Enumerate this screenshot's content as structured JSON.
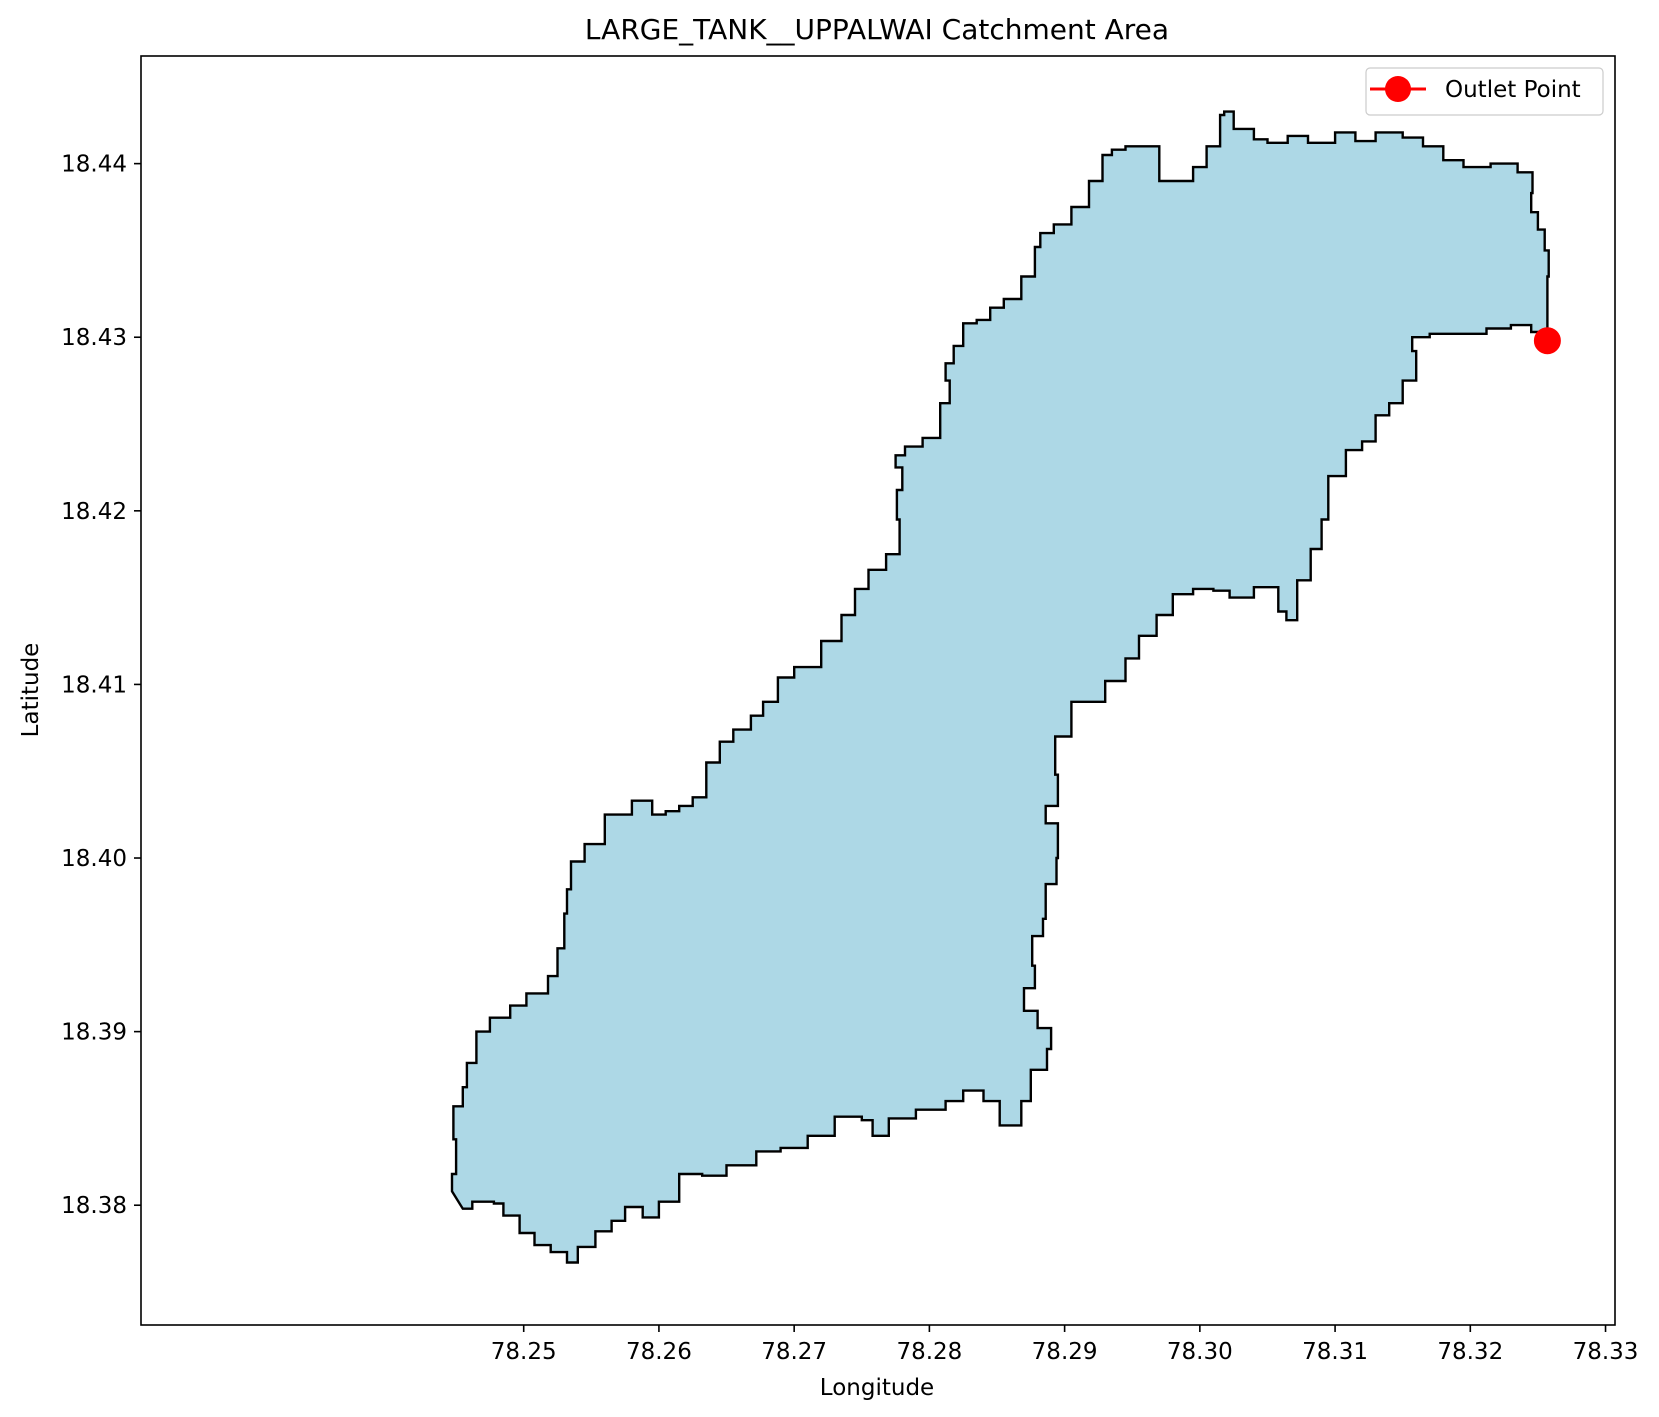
{
  "chart_data": {
    "type": "map",
    "title": "LARGE_TANK__UPPALWAI Catchment Area",
    "xlabel": "Longitude",
    "ylabel": "Latitude",
    "xlim": [
      78.2217,
      78.3307
    ],
    "ylim": [
      18.3731,
      18.4462
    ],
    "xticks": [
      78.25,
      78.26,
      78.27,
      78.28,
      78.29,
      78.3,
      78.31,
      78.32,
      78.33
    ],
    "xtick_labels": [
      "78.25",
      "78.26",
      "78.27",
      "78.28",
      "78.29",
      "78.30",
      "78.31",
      "78.32",
      "78.33"
    ],
    "yticks": [
      18.38,
      18.39,
      18.4,
      18.41,
      18.42,
      18.43,
      18.44
    ],
    "ytick_labels": [
      "18.38",
      "18.39",
      "18.40",
      "18.41",
      "18.42",
      "18.43",
      "18.44"
    ],
    "grid": false,
    "legend": {
      "placement": "top-right",
      "entries": [
        {
          "label": "Outlet Point",
          "color": "#ff0000",
          "marker": "circle-with-line"
        }
      ]
    },
    "catchment": {
      "fill_color": "#add8e6",
      "edge_color": "#000000",
      "boundary": [
        [
          78.2455,
          18.3798
        ],
        [
          78.2462,
          18.3802
        ],
        [
          78.2478,
          18.3801
        ],
        [
          78.2485,
          18.3794
        ],
        [
          78.2497,
          18.3784
        ],
        [
          78.2508,
          18.3777
        ],
        [
          78.252,
          18.3773
        ],
        [
          78.2532,
          18.3767
        ],
        [
          78.254,
          18.3776
        ],
        [
          78.2553,
          18.3785
        ],
        [
          78.2565,
          18.3791
        ],
        [
          78.2575,
          18.3799
        ],
        [
          78.2588,
          18.3793
        ],
        [
          78.26,
          18.3802
        ],
        [
          78.2615,
          18.3818
        ],
        [
          78.2632,
          18.3817
        ],
        [
          78.265,
          18.3823
        ],
        [
          78.2672,
          18.3831
        ],
        [
          78.269,
          18.3833
        ],
        [
          78.271,
          18.384
        ],
        [
          78.273,
          18.3851
        ],
        [
          78.275,
          18.3849
        ],
        [
          78.2758,
          18.384
        ],
        [
          78.277,
          18.385
        ],
        [
          78.279,
          18.3855
        ],
        [
          78.2812,
          18.386
        ],
        [
          78.2825,
          18.3866
        ],
        [
          78.284,
          18.386
        ],
        [
          78.2852,
          18.3846
        ],
        [
          78.2868,
          18.386
        ],
        [
          78.2875,
          18.3878
        ],
        [
          78.2887,
          18.389
        ],
        [
          78.289,
          18.3902
        ],
        [
          78.288,
          18.3912
        ],
        [
          78.287,
          18.3925
        ],
        [
          78.2878,
          18.3938
        ],
        [
          78.2876,
          18.3955
        ],
        [
          78.2884,
          18.3965
        ],
        [
          78.2886,
          18.3985
        ],
        [
          78.2894,
          18.4
        ],
        [
          78.2895,
          18.402
        ],
        [
          78.2886,
          18.403
        ],
        [
          78.2895,
          18.4048
        ],
        [
          78.2893,
          18.407
        ],
        [
          78.2905,
          18.409
        ],
        [
          78.293,
          18.4102
        ],
        [
          78.2945,
          18.4115
        ],
        [
          78.2955,
          18.4128
        ],
        [
          78.2968,
          18.414
        ],
        [
          78.298,
          18.4152
        ],
        [
          78.2995,
          18.4155
        ],
        [
          78.301,
          18.4154
        ],
        [
          78.3022,
          18.415
        ],
        [
          78.304,
          18.4156
        ],
        [
          78.3058,
          18.4142
        ],
        [
          78.3064,
          18.4137
        ],
        [
          78.3072,
          18.416
        ],
        [
          78.3082,
          18.4178
        ],
        [
          78.309,
          18.4195
        ],
        [
          78.3095,
          18.422
        ],
        [
          78.3108,
          18.4235
        ],
        [
          78.312,
          18.424
        ],
        [
          78.313,
          18.4255
        ],
        [
          78.314,
          18.4262
        ],
        [
          78.315,
          18.4275
        ],
        [
          78.316,
          18.4292
        ],
        [
          78.3157,
          18.43
        ],
        [
          78.317,
          18.4302
        ],
        [
          78.319,
          18.4302
        ],
        [
          78.3212,
          18.4305
        ],
        [
          78.323,
          18.4307
        ],
        [
          78.3245,
          18.4303
        ],
        [
          78.3257,
          18.4307
        ],
        [
          78.3257,
          18.432
        ],
        [
          78.3257,
          18.4335
        ],
        [
          78.3258,
          18.435
        ],
        [
          78.3255,
          18.4362
        ],
        [
          78.325,
          18.4372
        ],
        [
          78.3245,
          18.4383
        ],
        [
          78.3246,
          18.4395
        ],
        [
          78.3235,
          18.44
        ],
        [
          78.3215,
          18.4398
        ],
        [
          78.3195,
          18.4402
        ],
        [
          78.318,
          18.441
        ],
        [
          78.3165,
          18.4415
        ],
        [
          78.315,
          18.4418
        ],
        [
          78.313,
          18.4413
        ],
        [
          78.3115,
          18.4418
        ],
        [
          78.31,
          18.4412
        ],
        [
          78.308,
          18.4416
        ],
        [
          78.3065,
          18.4412
        ],
        [
          78.305,
          18.4414
        ],
        [
          78.304,
          18.442
        ],
        [
          78.3025,
          18.443
        ],
        [
          78.3018,
          18.4428
        ],
        [
          78.3015,
          18.441
        ],
        [
          78.3005,
          18.4398
        ],
        [
          78.2995,
          18.439
        ],
        [
          78.2982,
          18.439
        ],
        [
          78.297,
          18.441
        ],
        [
          78.296,
          18.441
        ],
        [
          78.2945,
          18.4408
        ],
        [
          78.2935,
          18.4405
        ],
        [
          78.2928,
          18.439
        ],
        [
          78.2918,
          18.4375
        ],
        [
          78.2905,
          18.4365
        ],
        [
          78.2892,
          18.436
        ],
        [
          78.2882,
          18.4352
        ],
        [
          78.2878,
          18.4335
        ],
        [
          78.2868,
          18.4322
        ],
        [
          78.2855,
          18.4317
        ],
        [
          78.2845,
          18.431
        ],
        [
          78.2835,
          18.4308
        ],
        [
          78.2825,
          18.4295
        ],
        [
          78.2818,
          18.4285
        ],
        [
          78.2812,
          18.4275
        ],
        [
          78.2815,
          18.4262
        ],
        [
          78.2808,
          18.4242
        ],
        [
          78.2795,
          18.4237
        ],
        [
          78.2782,
          18.4232
        ],
        [
          78.2775,
          18.4225
        ],
        [
          78.278,
          18.4212
        ],
        [
          78.2776,
          18.4195
        ],
        [
          78.2778,
          18.4175
        ],
        [
          78.2768,
          18.4166
        ],
        [
          78.2755,
          18.4155
        ],
        [
          78.2745,
          18.414
        ],
        [
          78.2735,
          18.4125
        ],
        [
          78.272,
          18.411
        ],
        [
          78.27,
          18.4104
        ],
        [
          78.2688,
          18.409
        ],
        [
          78.2677,
          18.4082
        ],
        [
          78.2668,
          18.4074
        ],
        [
          78.2655,
          18.4067
        ],
        [
          78.2645,
          18.4055
        ],
        [
          78.2635,
          18.4035
        ],
        [
          78.2625,
          18.403
        ],
        [
          78.2615,
          18.4027
        ],
        [
          78.2605,
          18.4025
        ],
        [
          78.2595,
          18.4033
        ],
        [
          78.258,
          18.4025
        ],
        [
          78.256,
          18.4008
        ],
        [
          78.2545,
          18.3998
        ],
        [
          78.2535,
          18.3982
        ],
        [
          78.2532,
          18.3968
        ],
        [
          78.253,
          18.3948
        ],
        [
          78.2525,
          18.3932
        ],
        [
          78.2518,
          18.3922
        ],
        [
          78.2502,
          18.3915
        ],
        [
          78.249,
          18.3908
        ],
        [
          78.2475,
          18.39
        ],
        [
          78.2465,
          18.3882
        ],
        [
          78.2458,
          18.3868
        ],
        [
          78.2455,
          18.3857
        ],
        [
          78.2448,
          18.3838
        ],
        [
          78.245,
          18.3818
        ],
        [
          78.2447,
          18.3808
        ]
      ]
    },
    "outlet_point": {
      "x": 78.3257,
      "y": 18.4298,
      "label": "Outlet Point",
      "color": "#ff0000"
    }
  }
}
